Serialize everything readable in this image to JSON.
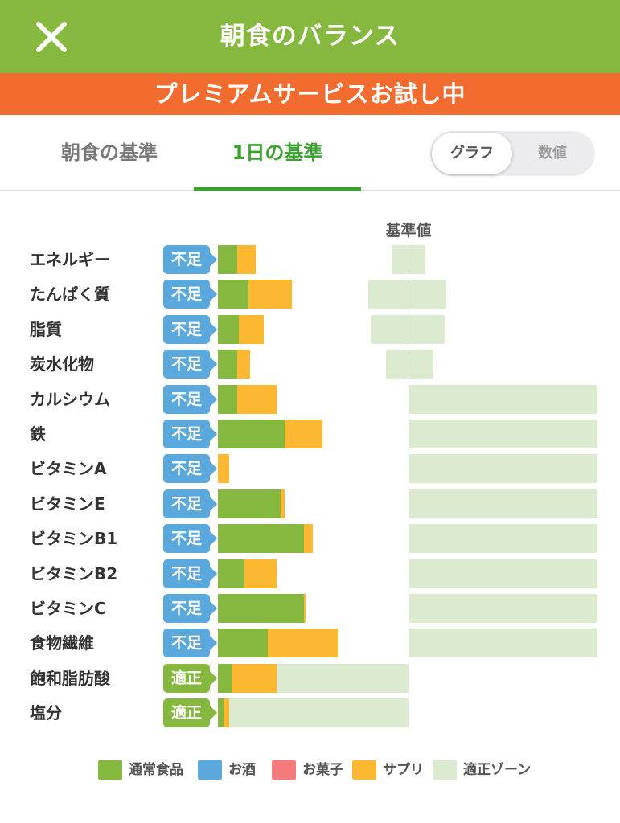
{
  "header": {
    "title": "朝食のバランス",
    "close_icon": "close-icon"
  },
  "banner": {
    "text": "プレミアムサービスお試し中"
  },
  "tabs": [
    {
      "label": "朝食の基準",
      "active": false
    },
    {
      "label": "1日の基準",
      "active": true
    }
  ],
  "view_toggle": {
    "graph": "グラフ",
    "numeric": "数値",
    "selected": "グラフ"
  },
  "colors": {
    "header": "#86b840",
    "banner": "#f26c2f",
    "active_tab": "#3aa12f",
    "insufficient": "#5aa8dc",
    "adequate": "#86b840",
    "food": "#86b840",
    "alcohol": "#5aa8dc",
    "sweets": "#f47b7b",
    "supplement": "#fbb830",
    "zone": "#dcebd0"
  },
  "chart_data": {
    "type": "bar",
    "reference_label": "基準値",
    "stacked": true,
    "units": "percent of reference value",
    "categories": [
      "エネルギー",
      "たんぱく質",
      "脂質",
      "炭水化物",
      "カルシウム",
      "鉄",
      "ビタミンA",
      "ビタミンE",
      "ビタミンB1",
      "ビタミンB2",
      "ビタミンC",
      "食物繊維",
      "飽和脂肪酸",
      "塩分"
    ],
    "status": [
      "不足",
      "不足",
      "不足",
      "不足",
      "不足",
      "不足",
      "不足",
      "不足",
      "不足",
      "不足",
      "不足",
      "不足",
      "適正",
      "適正"
    ],
    "series": [
      {
        "name": "通常食品",
        "values": [
          10,
          16,
          11,
          10,
          10,
          35,
          0,
          33,
          45,
          14,
          45,
          26,
          7,
          3
        ]
      },
      {
        "name": "お酒",
        "values": [
          0,
          0,
          0,
          0,
          0,
          0,
          0,
          0,
          0,
          0,
          0,
          0,
          0,
          0
        ]
      },
      {
        "name": "お菓子",
        "values": [
          0,
          0,
          0,
          0,
          0,
          0,
          0,
          0,
          0,
          0,
          0,
          0,
          0,
          0
        ]
      },
      {
        "name": "サプリ",
        "values": [
          10,
          23,
          13,
          7,
          21,
          20,
          6,
          2,
          5,
          17,
          1,
          37,
          24,
          3
        ]
      }
    ],
    "adequate_zone": [
      [
        91,
        109
      ],
      [
        79,
        120
      ],
      [
        80,
        119
      ],
      [
        88,
        113
      ],
      [
        100,
        999
      ],
      [
        100,
        999
      ],
      [
        100,
        999
      ],
      [
        100,
        999
      ],
      [
        100,
        999
      ],
      [
        100,
        999
      ],
      [
        100,
        999
      ],
      [
        100,
        999
      ],
      [
        0,
        100
      ],
      [
        0,
        100
      ]
    ]
  },
  "legend": [
    {
      "label": "通常食品",
      "color": "#86b840"
    },
    {
      "label": "お酒",
      "color": "#5aa8dc"
    },
    {
      "label": "お菓子",
      "color": "#f47b7b"
    },
    {
      "label": "サプリ",
      "color": "#fbb830"
    },
    {
      "label": "適正ゾーン",
      "color": "#dcebd0"
    }
  ]
}
